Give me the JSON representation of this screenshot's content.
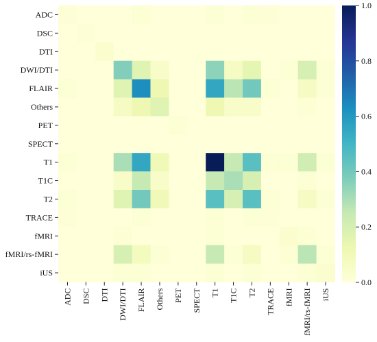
{
  "chart_data": {
    "type": "heatmap",
    "title": "",
    "xlabel": "",
    "ylabel": "",
    "categories": [
      "ADC",
      "DSC",
      "DTI",
      "DWI/DTI",
      "FLAIR",
      "Others",
      "PET",
      "SPECT",
      "T1",
      "T1C",
      "T2",
      "TRACE",
      "fMRI",
      "fMRI/rs-fMRI",
      "iUS"
    ],
    "values": [
      [
        0.01,
        0.0,
        0.0,
        0.0,
        0.02,
        0.0,
        0.0,
        0.0,
        0.02,
        0.0,
        0.02,
        0.01,
        0.0,
        0.0,
        0.0
      ],
      [
        0.0,
        0.01,
        0.0,
        0.0,
        0.0,
        0.0,
        0.0,
        0.0,
        0.0,
        0.0,
        0.0,
        0.0,
        0.0,
        0.0,
        0.0
      ],
      [
        0.0,
        0.0,
        0.03,
        0.0,
        0.0,
        0.0,
        0.0,
        0.0,
        0.0,
        0.0,
        0.0,
        0.0,
        0.0,
        0.0,
        0.0
      ],
      [
        0.0,
        0.0,
        0.0,
        0.37,
        0.17,
        0.05,
        0.0,
        0.0,
        0.35,
        0.07,
        0.15,
        0.0,
        0.02,
        0.2,
        0.02
      ],
      [
        0.02,
        0.0,
        0.0,
        0.17,
        0.63,
        0.12,
        0.0,
        0.0,
        0.55,
        0.27,
        0.4,
        0.02,
        0.0,
        0.07,
        0.02
      ],
      [
        0.0,
        0.0,
        0.0,
        0.07,
        0.12,
        0.17,
        0.0,
        0.0,
        0.12,
        0.05,
        0.05,
        0.0,
        0.0,
        0.02,
        0.0
      ],
      [
        0.0,
        0.0,
        0.0,
        0.0,
        0.0,
        0.0,
        0.02,
        0.0,
        0.0,
        0.0,
        0.0,
        0.0,
        0.0,
        0.0,
        0.0
      ],
      [
        0.0,
        0.0,
        0.0,
        0.0,
        0.0,
        0.0,
        0.0,
        0.0,
        0.0,
        0.0,
        0.0,
        0.0,
        0.0,
        0.0,
        0.0
      ],
      [
        0.02,
        0.0,
        0.0,
        0.3,
        0.55,
        0.1,
        0.0,
        0.0,
        1.0,
        0.25,
        0.45,
        0.02,
        0.02,
        0.22,
        0.02
      ],
      [
        0.0,
        0.0,
        0.0,
        0.05,
        0.25,
        0.05,
        0.0,
        0.0,
        0.25,
        0.3,
        0.2,
        0.0,
        0.0,
        0.02,
        0.0
      ],
      [
        0.02,
        0.0,
        0.0,
        0.17,
        0.4,
        0.1,
        0.0,
        0.0,
        0.45,
        0.2,
        0.45,
        0.02,
        0.0,
        0.07,
        0.02
      ],
      [
        0.01,
        0.0,
        0.0,
        0.0,
        0.02,
        0.0,
        0.0,
        0.0,
        0.02,
        0.0,
        0.02,
        0.01,
        0.0,
        0.0,
        0.0
      ],
      [
        0.0,
        0.0,
        0.0,
        0.02,
        0.0,
        0.0,
        0.0,
        0.0,
        0.02,
        0.0,
        0.0,
        0.0,
        0.03,
        0.02,
        0.0
      ],
      [
        0.0,
        0.0,
        0.0,
        0.2,
        0.08,
        0.02,
        0.0,
        0.0,
        0.25,
        0.02,
        0.07,
        0.0,
        0.02,
        0.27,
        0.02
      ],
      [
        0.0,
        0.0,
        0.0,
        0.02,
        0.02,
        0.0,
        0.0,
        0.0,
        0.02,
        0.0,
        0.02,
        0.0,
        0.0,
        0.02,
        0.03
      ]
    ],
    "colorbar": {
      "min": 0.0,
      "max": 1.0,
      "ticks": [
        "0.0",
        "0.2",
        "0.4",
        "0.6",
        "0.8",
        "1.0"
      ],
      "colormap": "YlGnBu",
      "stops": [
        "#ffffd9",
        "#edf8b1",
        "#c7e9b4",
        "#7fcdbb",
        "#41b6c4",
        "#1d91c0",
        "#225ea8",
        "#253494",
        "#081d58"
      ]
    },
    "grid": false,
    "legend": "colorbar-right"
  }
}
